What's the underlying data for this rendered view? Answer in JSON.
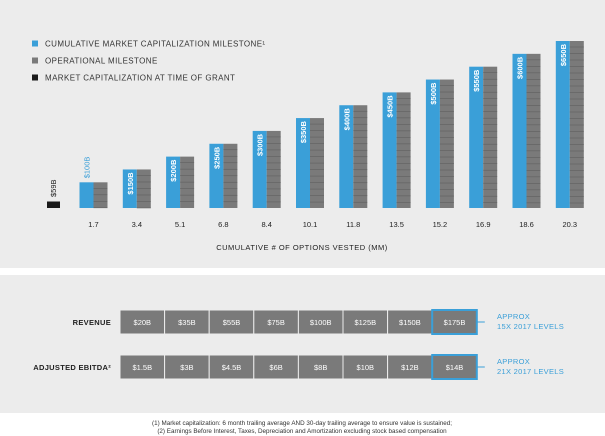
{
  "chart_data": [
    {
      "type": "bar",
      "legend": [
        {
          "label": "CUMULATIVE MARKET CAPITALIZATION MILESTONE¹",
          "color": "#3a9fd8"
        },
        {
          "label": "OPERATIONAL MILESTONE",
          "color": "#7a7a7a"
        },
        {
          "label": "MARKET CAPITALIZATION AT TIME OF GRANT",
          "color": "#1a1a1a"
        }
      ],
      "legend_position": "top-left",
      "grant": {
        "label": "$59B",
        "value": 59,
        "color": "#1a1a1a"
      },
      "categories": [
        "1.7",
        "3.4",
        "5.1",
        "6.8",
        "8.4",
        "10.1",
        "11.8",
        "13.5",
        "15.2",
        "16.9",
        "18.6",
        "20.3"
      ],
      "series": [
        {
          "name": "CUMULATIVE MARKET CAPITALIZATION MILESTONE¹",
          "values": [
            100,
            150,
            200,
            250,
            300,
            350,
            400,
            450,
            500,
            550,
            600,
            650
          ],
          "labels": [
            "$100B",
            "$150B",
            "$200B",
            "$250B",
            "$300B",
            "$350B",
            "$400B",
            "$450B",
            "$500B",
            "$550B",
            "$600B",
            "$650B"
          ]
        },
        {
          "name": "OPERATIONAL MILESTONE",
          "values": [
            100,
            150,
            200,
            250,
            300,
            350,
            400,
            450,
            500,
            550,
            600,
            650
          ]
        }
      ],
      "xlabel": "CUMULATIVE # OF OPTIONS VESTED (MM)",
      "ylabel": "",
      "ylim": [
        0,
        650
      ],
      "grid": false
    },
    {
      "type": "table",
      "rows": [
        {
          "label": "REVENUE",
          "values": [
            "$20B",
            "$35B",
            "$55B",
            "$75B",
            "$100B",
            "$125B",
            "$150B",
            "$175B"
          ],
          "note": [
            "APPROX",
            "15X 2017 LEVELS"
          ]
        },
        {
          "label": "ADJUSTED EBITDA²",
          "values": [
            "$1.5B",
            "$3B",
            "$4.5B",
            "$6B",
            "$8B",
            "$10B",
            "$12B",
            "$14B"
          ],
          "note": [
            "APPROX",
            "21X 2017 LEVELS"
          ]
        }
      ],
      "highlight_index": 7
    }
  ],
  "colors": {
    "accent": "#3a9fd8",
    "operational": "#7a7a7a",
    "grant": "#1a1a1a",
    "cell": "#7a7a7a",
    "panel": "#ececec"
  },
  "footnotes": [
    "(1) Market capitalization: 6 month trailing average AND 30-day trailing average to ensure value is sustained;",
    "(2) Earnings Before Interest, Taxes, Depreciation and Amortization excluding stock based compensation"
  ]
}
